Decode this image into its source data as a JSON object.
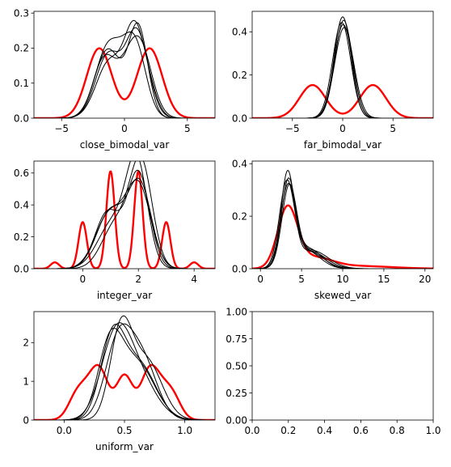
{
  "chart_data": [
    {
      "type": "line",
      "xlabel": "close_bimodal_var",
      "ylabel": "",
      "xlim": [
        -7.2,
        7.2
      ],
      "ylim": [
        0,
        0.305
      ],
      "xticks": [
        -5,
        0,
        5
      ],
      "yticks": [
        0.0,
        0.1,
        0.2,
        0.3
      ],
      "ytick_decimals": 1,
      "grid": false,
      "series": [
        {
          "color": "#ff0000",
          "width": 2.4,
          "components": [
            {
              "mu": -2,
              "sigma": 1.0,
              "w": 0.5
            },
            {
              "mu": 2,
              "sigma": 1.0,
              "w": 0.5
            }
          ]
        },
        {
          "color": "#000000",
          "width": 1.0,
          "components": [
            {
              "mu": -1.5,
              "sigma": 0.95,
              "w": 0.4
            },
            {
              "mu": 0.9,
              "sigma": 0.85,
              "w": 0.4
            },
            {
              "mu": -0.3,
              "sigma": 0.9,
              "w": 0.2
            }
          ]
        },
        {
          "color": "#000000",
          "width": 1.0,
          "components": [
            {
              "mu": -1.3,
              "sigma": 1.0,
              "w": 0.45
            },
            {
              "mu": 1.0,
              "sigma": 0.9,
              "w": 0.55
            }
          ]
        },
        {
          "color": "#000000",
          "width": 1.0,
          "components": [
            {
              "mu": -1.6,
              "sigma": 0.9,
              "w": 0.38
            },
            {
              "mu": 1.2,
              "sigma": 0.95,
              "w": 0.5
            },
            {
              "mu": 0.0,
              "sigma": 0.8,
              "w": 0.12
            }
          ]
        },
        {
          "color": "#000000",
          "width": 1.0,
          "components": [
            {
              "mu": -1.2,
              "sigma": 1.05,
              "w": 0.42
            },
            {
              "mu": 0.8,
              "sigma": 0.8,
              "w": 0.48
            },
            {
              "mu": 2.0,
              "sigma": 0.7,
              "w": 0.1
            }
          ]
        },
        {
          "color": "#000000",
          "width": 1.0,
          "components": [
            {
              "mu": -1.4,
              "sigma": 1.0,
              "w": 0.44
            },
            {
              "mu": 1.1,
              "sigma": 0.75,
              "w": 0.46
            },
            {
              "mu": -0.2,
              "sigma": 1.2,
              "w": 0.1
            }
          ]
        }
      ]
    },
    {
      "type": "line",
      "xlabel": "far_bimodal_var",
      "ylabel": "",
      "xlim": [
        -9.0,
        9.0
      ],
      "ylim": [
        0,
        0.495
      ],
      "xticks": [
        -5,
        0,
        5
      ],
      "yticks": [
        0.0,
        0.2,
        0.4
      ],
      "ytick_decimals": 1,
      "grid": false,
      "series": [
        {
          "color": "#ff0000",
          "width": 2.4,
          "components": [
            {
              "mu": -3,
              "sigma": 1.3,
              "w": 0.5
            },
            {
              "mu": 3,
              "sigma": 1.3,
              "w": 0.5
            }
          ]
        },
        {
          "color": "#000000",
          "width": 1.0,
          "components": [
            {
              "mu": 0.0,
              "sigma": 0.85,
              "w": 1.0
            }
          ]
        },
        {
          "color": "#000000",
          "width": 1.0,
          "components": [
            {
              "mu": 0.1,
              "sigma": 0.88,
              "w": 1.0
            }
          ]
        },
        {
          "color": "#000000",
          "width": 1.0,
          "components": [
            {
              "mu": -0.1,
              "sigma": 0.9,
              "w": 1.0
            }
          ]
        },
        {
          "color": "#000000",
          "width": 1.0,
          "components": [
            {
              "mu": 0.05,
              "sigma": 0.92,
              "w": 1.0
            }
          ]
        },
        {
          "color": "#000000",
          "width": 1.0,
          "components": [
            {
              "mu": 0.15,
              "sigma": 0.95,
              "w": 1.0
            }
          ]
        }
      ]
    },
    {
      "type": "line",
      "xlabel": "integer_var",
      "ylabel": "",
      "xlim": [
        -1.75,
        4.75
      ],
      "ylim": [
        0,
        0.675
      ],
      "xticks": [
        0,
        2,
        4
      ],
      "yticks": [
        0.0,
        0.2,
        0.4,
        0.6
      ],
      "ytick_decimals": 1,
      "grid": false,
      "series": [
        {
          "color": "#ff0000",
          "width": 2.4,
          "components": [
            {
              "mu": -1,
              "sigma": 0.15,
              "w": 0.015
            },
            {
              "mu": 0,
              "sigma": 0.15,
              "w": 0.11
            },
            {
              "mu": 1,
              "sigma": 0.15,
              "w": 0.23
            },
            {
              "mu": 2,
              "sigma": 0.15,
              "w": 0.23
            },
            {
              "mu": 3,
              "sigma": 0.15,
              "w": 0.11
            },
            {
              "mu": 4,
              "sigma": 0.15,
              "w": 0.015
            }
          ]
        },
        {
          "color": "#000000",
          "width": 1.0,
          "components": [
            {
              "mu": 0.9,
              "sigma": 0.45,
              "w": 0.4
            },
            {
              "mu": 2.0,
              "sigma": 0.4,
              "w": 0.6
            }
          ]
        },
        {
          "color": "#000000",
          "width": 1.0,
          "components": [
            {
              "mu": 1.0,
              "sigma": 0.5,
              "w": 0.45
            },
            {
              "mu": 2.05,
              "sigma": 0.42,
              "w": 0.55
            }
          ]
        },
        {
          "color": "#000000",
          "width": 1.0,
          "components": [
            {
              "mu": 1.1,
              "sigma": 0.55,
              "w": 0.4
            },
            {
              "mu": 1.95,
              "sigma": 0.38,
              "w": 0.6
            }
          ]
        },
        {
          "color": "#000000",
          "width": 1.0,
          "components": [
            {
              "mu": 0.95,
              "sigma": 0.5,
              "w": 0.42
            },
            {
              "mu": 2.0,
              "sigma": 0.45,
              "w": 0.58
            }
          ]
        },
        {
          "color": "#000000",
          "width": 1.0,
          "components": [
            {
              "mu": 1.2,
              "sigma": 0.5,
              "w": 0.35
            },
            {
              "mu": 2.1,
              "sigma": 0.4,
              "w": 0.65
            }
          ]
        }
      ]
    },
    {
      "type": "line",
      "xlabel": "skewed_var",
      "ylabel": "",
      "xlim": [
        -1.0,
        21.0
      ],
      "ylim": [
        0,
        0.41
      ],
      "xticks": [
        0,
        5,
        10,
        15,
        20
      ],
      "yticks": [
        0.0,
        0.2,
        0.4
      ],
      "ytick_decimals": 1,
      "grid": false,
      "series": [
        {
          "color": "#ff0000",
          "width": 2.4,
          "components": [
            {
              "mu": 3.3,
              "sigma": 1.2,
              "w": 0.68
            },
            {
              "mu": 6.5,
              "sigma": 2.2,
              "w": 0.22
            },
            {
              "mu": 12,
              "sigma": 4.0,
              "w": 0.1
            }
          ]
        },
        {
          "color": "#000000",
          "width": 1.0,
          "components": [
            {
              "mu": 3.3,
              "sigma": 0.8,
              "w": 0.7
            },
            {
              "mu": 5.8,
              "sigma": 1.8,
              "w": 0.3
            }
          ]
        },
        {
          "color": "#000000",
          "width": 1.0,
          "components": [
            {
              "mu": 3.4,
              "sigma": 0.85,
              "w": 0.68
            },
            {
              "mu": 6.0,
              "sigma": 1.9,
              "w": 0.32
            }
          ]
        },
        {
          "color": "#000000",
          "width": 1.0,
          "components": [
            {
              "mu": 3.2,
              "sigma": 0.9,
              "w": 0.7
            },
            {
              "mu": 5.5,
              "sigma": 1.7,
              "w": 0.3
            }
          ]
        },
        {
          "color": "#000000",
          "width": 1.0,
          "components": [
            {
              "mu": 3.5,
              "sigma": 0.88,
              "w": 0.65
            },
            {
              "mu": 6.2,
              "sigma": 2.0,
              "w": 0.35
            }
          ]
        },
        {
          "color": "#000000",
          "width": 1.0,
          "components": [
            {
              "mu": 3.35,
              "sigma": 0.92,
              "w": 0.7
            },
            {
              "mu": 5.9,
              "sigma": 1.6,
              "w": 0.3
            }
          ]
        }
      ]
    },
    {
      "type": "line",
      "xlabel": "uniform_var",
      "ylabel": "",
      "xlim": [
        -0.25,
        1.25
      ],
      "ylim": [
        0,
        2.8
      ],
      "xticks": [
        0.0,
        0.5,
        1.0
      ],
      "yticks": [
        0,
        1,
        2
      ],
      "xtick_decimals": 1,
      "ytick_decimals": 0,
      "grid": false,
      "series": [
        {
          "color": "#ff0000",
          "width": 2.4,
          "components": [
            {
              "mu": 0.1,
              "sigma": 0.07,
              "w": 0.1
            },
            {
              "mu": 0.3,
              "sigma": 0.07,
              "w": 0.2
            },
            {
              "mu": 0.5,
              "sigma": 0.07,
              "w": 0.2
            },
            {
              "mu": 0.7,
              "sigma": 0.07,
              "w": 0.2
            },
            {
              "mu": 0.9,
              "sigma": 0.07,
              "w": 0.1
            },
            {
              "mu": 0.2,
              "sigma": 0.07,
              "w": 0.1
            },
            {
              "mu": 0.8,
              "sigma": 0.07,
              "w": 0.1
            }
          ]
        },
        {
          "color": "#000000",
          "width": 1.0,
          "components": [
            {
              "mu": 0.4,
              "sigma": 0.1,
              "w": 0.5
            },
            {
              "mu": 0.62,
              "sigma": 0.14,
              "w": 0.5
            }
          ]
        },
        {
          "color": "#000000",
          "width": 1.0,
          "components": [
            {
              "mu": 0.45,
              "sigma": 0.11,
              "w": 0.55
            },
            {
              "mu": 0.65,
              "sigma": 0.12,
              "w": 0.45
            }
          ]
        },
        {
          "color": "#000000",
          "width": 1.0,
          "components": [
            {
              "mu": 0.38,
              "sigma": 0.1,
              "w": 0.45
            },
            {
              "mu": 0.6,
              "sigma": 0.15,
              "w": 0.55
            }
          ]
        },
        {
          "color": "#000000",
          "width": 1.0,
          "components": [
            {
              "mu": 0.47,
              "sigma": 0.09,
              "w": 0.5
            },
            {
              "mu": 0.68,
              "sigma": 0.13,
              "w": 0.5
            }
          ]
        },
        {
          "color": "#000000",
          "width": 1.0,
          "components": [
            {
              "mu": 0.42,
              "sigma": 0.12,
              "w": 0.5
            },
            {
              "mu": 0.58,
              "sigma": 0.16,
              "w": 0.5
            }
          ]
        }
      ]
    },
    {
      "type": "line",
      "xlabel": "",
      "ylabel": "",
      "xlim": [
        0,
        1
      ],
      "ylim": [
        0,
        1
      ],
      "xticks": [
        0.0,
        0.2,
        0.4,
        0.6,
        0.8,
        1.0
      ],
      "yticks": [
        0.0,
        0.25,
        0.5,
        0.75,
        1.0
      ],
      "xtick_decimals": 1,
      "ytick_decimals": 2,
      "grid": false,
      "series": []
    }
  ]
}
